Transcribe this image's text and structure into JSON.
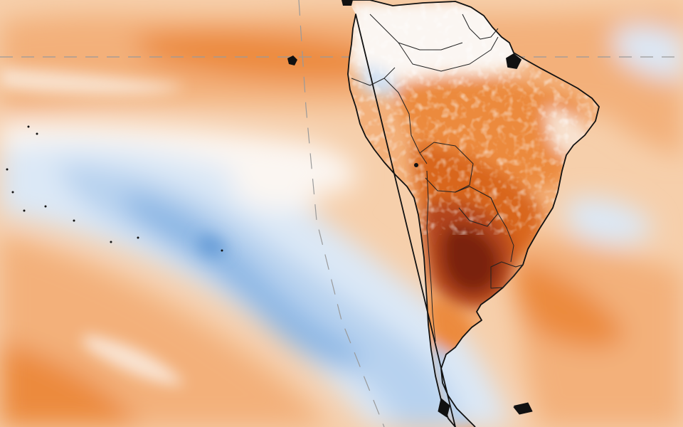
{
  "map": {
    "colors": {
      "background_warm": "#f6cfab",
      "warm_light": "#f8dcc2",
      "warm_mid": "#f3b07a",
      "warm_strong": "#ec8a3c",
      "warm_deep": "#d9661f",
      "hot": "#b3441a",
      "hot_core": "#7a2310",
      "neutral": "#fbf6f2",
      "cool_light": "#dbe8f6",
      "cool_mid": "#b7d2ef",
      "cool_strong": "#8ab6e4",
      "cool_deep": "#6a9fd8",
      "coastline": "#111111",
      "graticule": "#9a9a9a"
    }
  }
}
